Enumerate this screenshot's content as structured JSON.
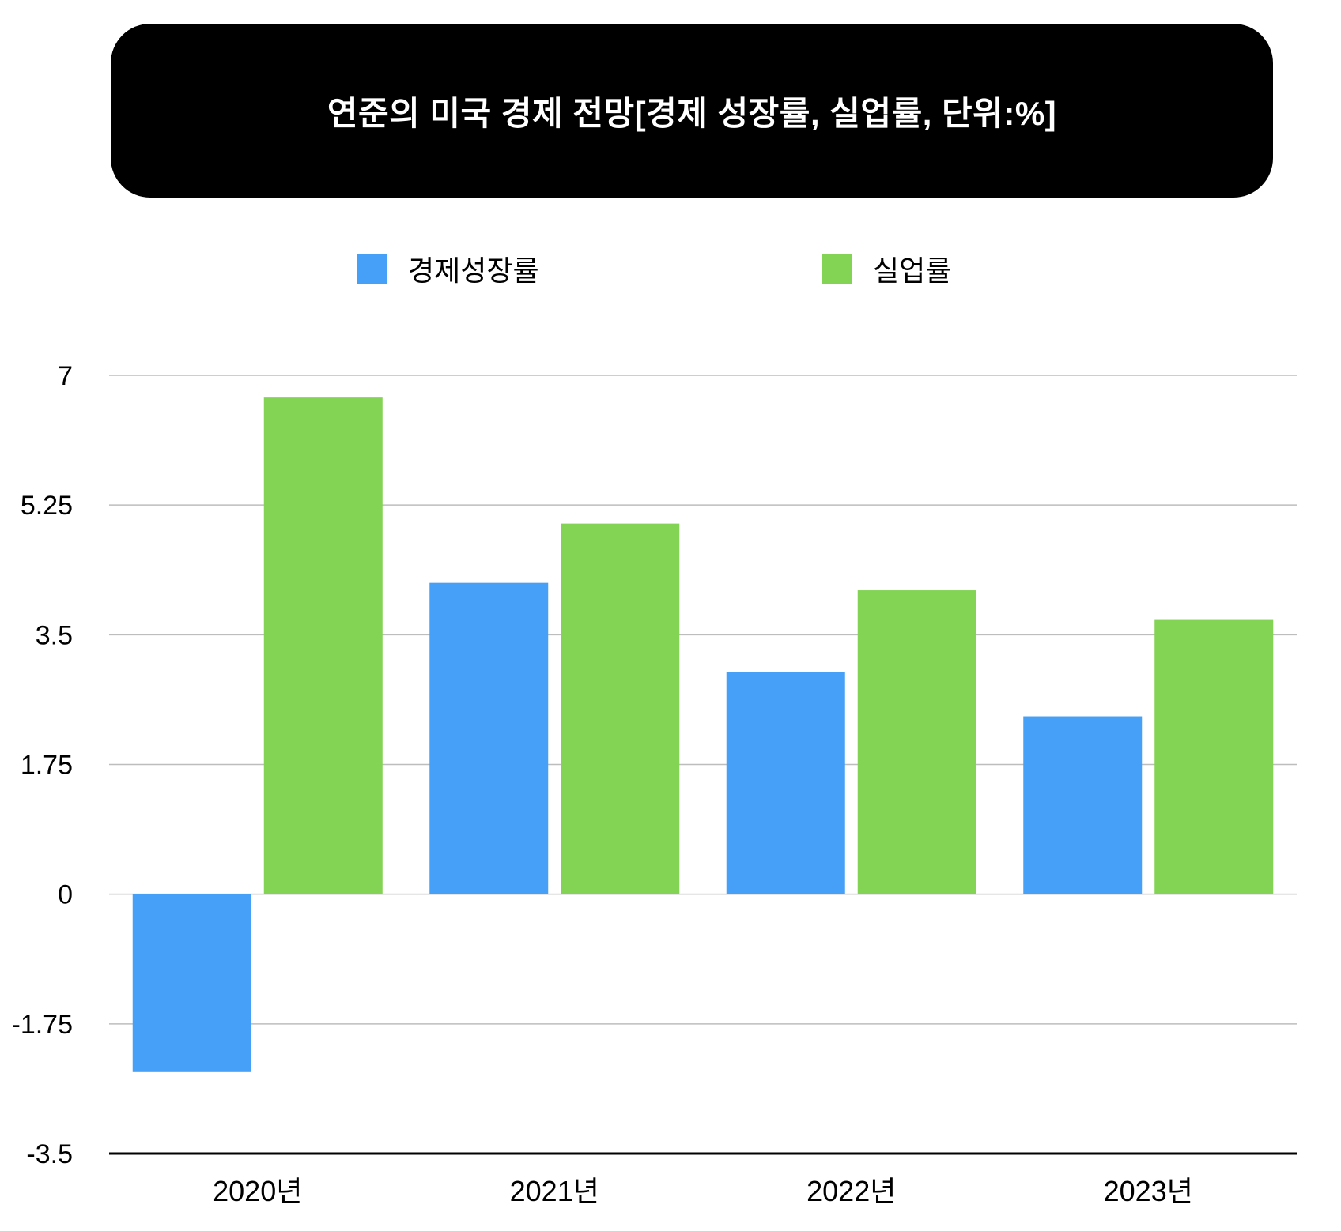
{
  "title": "연준의 미국 경제 전망[경제 성장률, 실업률, 단위:%]",
  "chart_data": {
    "type": "bar",
    "categories": [
      "2020년",
      "2021년",
      "2022년",
      "2023년"
    ],
    "series": [
      {
        "name": "경제성장률",
        "color": "#47a0f8",
        "values": [
          -2.4,
          4.2,
          3.0,
          2.4
        ]
      },
      {
        "name": "실업률",
        "color": "#83d454",
        "values": [
          6.7,
          5.0,
          4.1,
          3.7
        ]
      }
    ],
    "yticks": [
      7,
      5.25,
      3.5,
      1.75,
      0,
      -1.75,
      -3.5
    ],
    "ytick_labels": [
      "7",
      "5.25",
      "3.5",
      "1.75",
      "0",
      "-1.75",
      "-3.5"
    ],
    "ylim": [
      -3.5,
      7
    ],
    "legend_position": "top-center",
    "grid": true,
    "grid_color": "#bdbdbd",
    "title_background": "#000000",
    "title_color": "#ffffff"
  }
}
